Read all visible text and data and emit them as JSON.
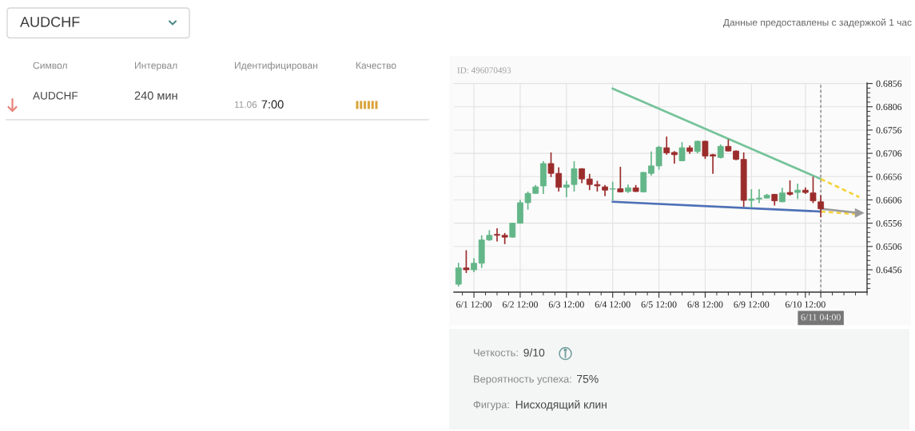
{
  "chart_data": {
    "type": "candlestick",
    "categories": [
      null,
      null,
      "6/1 12:00",
      null,
      null,
      null,
      null,
      null,
      "6/2 12:00",
      null,
      null,
      null,
      null,
      null,
      "6/3 12:00",
      null,
      null,
      null,
      null,
      null,
      "6/4 12:00",
      null,
      null,
      null,
      null,
      null,
      "6/5 12:00",
      null,
      null,
      null,
      null,
      null,
      "6/8 12:00",
      null,
      null,
      null,
      null,
      null,
      "6/9 12:00",
      null,
      null,
      null,
      null,
      null,
      null,
      "6/10 12:00",
      null,
      "6/11 04:00",
      null,
      null,
      null,
      null,
      null
    ],
    "ohlc": [
      [
        0.6425,
        0.6471,
        0.642,
        0.646
      ],
      [
        0.646,
        0.6498,
        0.6449,
        0.6456
      ],
      [
        0.6456,
        0.6481,
        0.6451,
        0.647
      ],
      [
        0.647,
        0.653,
        0.646,
        0.652
      ],
      [
        0.652,
        0.6541,
        0.6518,
        0.653
      ],
      [
        0.6532,
        0.6545,
        0.6517,
        0.653
      ],
      [
        0.653,
        0.6535,
        0.6511,
        0.6526
      ],
      [
        0.6526,
        0.6557,
        0.6525,
        0.6556
      ],
      [
        0.6556,
        0.6606,
        0.6555,
        0.66
      ],
      [
        0.66,
        0.6624,
        0.6585,
        0.662
      ],
      [
        0.662,
        0.6638,
        0.6619,
        0.6634
      ],
      [
        0.6636,
        0.6689,
        0.6619,
        0.6684
      ],
      [
        0.6684,
        0.6708,
        0.6655,
        0.6663
      ],
      [
        0.6663,
        0.6676,
        0.6624,
        0.6633
      ],
      [
        0.6633,
        0.6647,
        0.6612,
        0.6638
      ],
      [
        0.6639,
        0.6689,
        0.6624,
        0.6673
      ],
      [
        0.6673,
        0.6674,
        0.6642,
        0.6651
      ],
      [
        0.6651,
        0.6662,
        0.6627,
        0.6639
      ],
      [
        0.6639,
        0.6647,
        0.6624,
        0.6636
      ],
      [
        0.6634,
        0.6638,
        0.6614,
        0.6627
      ],
      [
        0.6629,
        0.6645,
        0.6605,
        0.663
      ],
      [
        0.663,
        0.6677,
        0.6622,
        0.6623
      ],
      [
        0.6624,
        0.6639,
        0.6621,
        0.6632
      ],
      [
        0.6632,
        0.6638,
        0.6623,
        0.6624
      ],
      [
        0.6623,
        0.6666,
        0.6622,
        0.6665
      ],
      [
        0.6663,
        0.671,
        0.6658,
        0.6679
      ],
      [
        0.6679,
        0.6722,
        0.6671,
        0.6719
      ],
      [
        0.6718,
        0.6742,
        0.6703,
        0.6707
      ],
      [
        0.6708,
        0.6711,
        0.6684,
        0.6703
      ],
      [
        0.669,
        0.673,
        0.6689,
        0.6718
      ],
      [
        0.6718,
        0.6723,
        0.6705,
        0.671
      ],
      [
        0.671,
        0.6733,
        0.6706,
        0.6732
      ],
      [
        0.6732,
        0.6733,
        0.6694,
        0.67
      ],
      [
        0.6703,
        0.6705,
        0.6662,
        0.67
      ],
      [
        0.6697,
        0.6725,
        0.6695,
        0.6721
      ],
      [
        0.6721,
        0.6736,
        0.671,
        0.6711
      ],
      [
        0.6711,
        0.6712,
        0.6691,
        0.6693
      ],
      [
        0.6693,
        0.6708,
        0.6591,
        0.6605
      ],
      [
        0.6605,
        0.6629,
        0.6589,
        0.6608
      ],
      [
        0.6608,
        0.6629,
        0.6599,
        0.661
      ],
      [
        0.661,
        0.6619,
        0.6609,
        0.6616
      ],
      [
        0.6618,
        0.6619,
        0.6594,
        0.6604
      ],
      [
        0.6602,
        0.6632,
        0.6601,
        0.6621
      ],
      [
        0.6622,
        0.6648,
        0.6615,
        0.6618
      ],
      [
        0.6622,
        0.6641,
        0.6608,
        0.6627
      ],
      [
        0.6627,
        0.6633,
        0.6619,
        0.6622
      ],
      [
        0.6621,
        0.6656,
        0.6599,
        0.6604
      ],
      [
        0.6602,
        0.6616,
        0.6569,
        0.6587
      ],
      null,
      null,
      null,
      null,
      null
    ],
    "colors": [
      "#63b688",
      "#9b2c2c",
      "#63b688",
      "#63b688",
      "#63b688",
      "#9b2c2c",
      "#9b2c2c",
      "#63b688",
      "#63b688",
      "#63b688",
      "#63b688",
      "#63b688",
      "#9b2c2c",
      "#9b2c2c",
      "#63b688",
      "#63b688",
      "#9b2c2c",
      "#9b2c2c",
      "#9b2c2c",
      "#9b2c2c",
      "#63b688",
      "#9b2c2c",
      "#63b688",
      "#9b2c2c",
      "#63b688",
      "#63b688",
      "#63b688",
      "#9b2c2c",
      "#9b2c2c",
      "#63b688",
      "#9b2c2c",
      "#63b688",
      "#9b2c2c",
      "#9b2c2c",
      "#63b688",
      "#9b2c2c",
      "#9b2c2c",
      "#9b2c2c",
      "#63b688",
      "#63b688",
      "#63b688",
      "#9b2c2c",
      "#63b688",
      "#9b2c2c",
      "#63b688",
      "#9b2c2c",
      "#9b2c2c",
      "#9b2c2c",
      null,
      null,
      null,
      null,
      null
    ],
    "series": [
      {
        "type": "line",
        "color": "#76c39a",
        "line_style": "solid",
        "values": [
          null,
          null,
          null,
          null,
          null,
          null,
          null,
          null,
          null,
          null,
          null,
          null,
          null,
          null,
          null,
          null,
          null,
          null,
          null,
          null,
          0.6845,
          null,
          null,
          null,
          null,
          null,
          null,
          null,
          null,
          null,
          null,
          null,
          null,
          null,
          null,
          null,
          null,
          null,
          null,
          null,
          null,
          null,
          null,
          null,
          null,
          null,
          null,
          0.6651,
          null,
          null,
          null,
          null,
          null
        ]
      },
      {
        "type": "line",
        "color": "#4d70b6",
        "line_style": "solid",
        "values": [
          null,
          null,
          null,
          null,
          null,
          null,
          null,
          null,
          null,
          null,
          null,
          null,
          null,
          null,
          null,
          null,
          null,
          null,
          null,
          null,
          0.6602,
          null,
          null,
          null,
          null,
          null,
          null,
          null,
          null,
          null,
          null,
          null,
          null,
          null,
          null,
          null,
          null,
          null,
          null,
          null,
          null,
          null,
          null,
          null,
          null,
          null,
          null,
          0.6581,
          null,
          null,
          null,
          null,
          null
        ]
      },
      {
        "type": "line",
        "color": "#f7d23c",
        "line_style": "dashed",
        "values": [
          null,
          null,
          null,
          null,
          null,
          null,
          null,
          null,
          null,
          null,
          null,
          null,
          null,
          null,
          null,
          null,
          null,
          null,
          null,
          null,
          null,
          null,
          null,
          null,
          null,
          null,
          null,
          null,
          null,
          null,
          null,
          null,
          null,
          null,
          null,
          null,
          null,
          null,
          null,
          null,
          null,
          null,
          null,
          null,
          null,
          null,
          null,
          0.6651,
          null,
          null,
          null,
          null,
          0.6612
        ]
      },
      {
        "type": "line",
        "color": "#f7d23c",
        "line_style": "dashed",
        "values": [
          null,
          null,
          null,
          null,
          null,
          null,
          null,
          null,
          null,
          null,
          null,
          null,
          null,
          null,
          null,
          null,
          null,
          null,
          null,
          null,
          null,
          null,
          null,
          null,
          null,
          null,
          null,
          null,
          null,
          null,
          null,
          null,
          null,
          null,
          null,
          null,
          null,
          null,
          null,
          null,
          null,
          null,
          null,
          null,
          null,
          null,
          null,
          0.6581,
          null,
          null,
          null,
          null,
          0.6575
        ]
      },
      {
        "type": "line",
        "color": "#9a9a9a",
        "line_style": "solid",
        "marker": "triangle",
        "values": [
          null,
          null,
          null,
          null,
          null,
          null,
          null,
          null,
          null,
          null,
          null,
          null,
          null,
          null,
          null,
          null,
          null,
          null,
          null,
          null,
          null,
          null,
          null,
          null,
          null,
          null,
          null,
          null,
          null,
          null,
          null,
          null,
          null,
          null,
          null,
          null,
          null,
          null,
          null,
          null,
          null,
          null,
          null,
          null,
          null,
          null,
          null,
          0.6587,
          null,
          null,
          null,
          null,
          0.6578
        ]
      }
    ],
    "ylim": [
      0.6408,
      0.6857
    ],
    "yticks": [
      0.6456,
      0.6506,
      0.6556,
      0.6606,
      0.6656,
      0.6706,
      0.6756,
      0.6806,
      0.6856
    ],
    "ref_lines": [
      {
        "axis": "x",
        "value": "6/11 04:00",
        "color": "#777777",
        "line_style": "dashed"
      }
    ],
    "grid": true,
    "annotations": [
      "AUDCHF",
      "Данные предоставлены с задержкой 1 час",
      "Символ",
      "Интервал",
      "Идентифицирован",
      "Качество",
      "AUDCHF",
      "240 мин",
      "11.06",
      "7:00",
      "ID: 496070493",
      "Четкость:",
      "9/10",
      "Вероятность успеха:",
      "75%",
      "Фигура:",
      "Нисходящий клин"
    ]
  }
}
